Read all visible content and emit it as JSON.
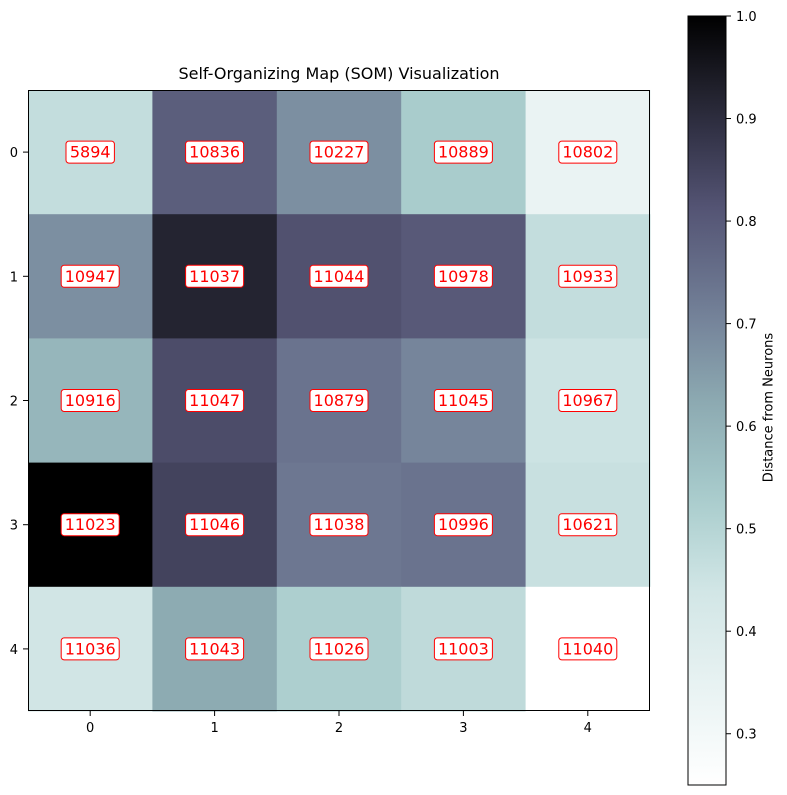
{
  "chart_data": {
    "type": "heatmap",
    "title": "Self-Organizing Map (SOM) Visualization",
    "xlabel": "",
    "ylabel": "",
    "x_ticks": [
      "0",
      "1",
      "2",
      "3",
      "4"
    ],
    "y_ticks": [
      "0",
      "1",
      "2",
      "3",
      "4"
    ],
    "grid": false,
    "colormap": "bone_r",
    "annotation_color": "#ff0000",
    "colorbar": {
      "label": "Distance from Neurons",
      "range": [
        0.25,
        1.0
      ],
      "ticks": [
        "0.3",
        "0.4",
        "0.5",
        "0.6",
        "0.7",
        "0.8",
        "0.9",
        "1.0"
      ],
      "tick_values": [
        0.3,
        0.4,
        0.5,
        0.6,
        0.7,
        0.8,
        0.9,
        1.0
      ]
    },
    "values": [
      [
        0.47,
        0.79,
        0.68,
        0.53,
        0.34
      ],
      [
        0.68,
        0.92,
        0.82,
        0.8,
        0.47
      ],
      [
        0.59,
        0.83,
        0.74,
        0.7,
        0.45
      ],
      [
        1.0,
        0.85,
        0.73,
        0.74,
        0.46
      ],
      [
        0.44,
        0.62,
        0.52,
        0.48,
        0.25
      ]
    ],
    "labels": [
      [
        "5894",
        "10836",
        "10227",
        "10889",
        "10802"
      ],
      [
        "10947",
        "11037",
        "11044",
        "10978",
        "10933"
      ],
      [
        "10916",
        "11047",
        "10879",
        "11045",
        "10967"
      ],
      [
        "11023",
        "11046",
        "11038",
        "10996",
        "10621"
      ],
      [
        "11036",
        "11043",
        "11026",
        "11003",
        "11040"
      ]
    ]
  }
}
